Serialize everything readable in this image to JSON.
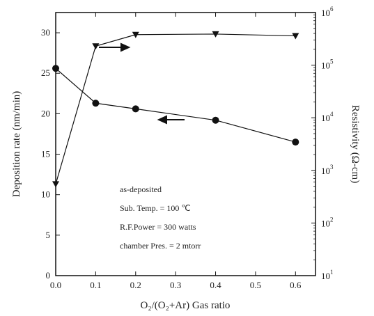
{
  "chart_data": {
    "type": "line",
    "title": "",
    "xlabel": "O₂/(O₂+Ar) Gas ratio",
    "ylabel_left": "Deposition rate (nm/min)",
    "ylabel_right": "Resistivity (Ω-cm)",
    "xlim": [
      0.0,
      0.65
    ],
    "ylim_left": [
      0,
      32.5
    ],
    "ylim_right": [
      10,
      1000000
    ],
    "right_scale": "log",
    "x_ticks": [
      "0.0",
      "0.1",
      "0.2",
      "0.3",
      "0.4",
      "0.5",
      "0.6"
    ],
    "y_left_ticks": [
      "0",
      "5",
      "10",
      "15",
      "20",
      "25",
      "30"
    ],
    "y_right_ticks": [
      {
        "base": "10",
        "exp": "1"
      },
      {
        "base": "10",
        "exp": "2"
      },
      {
        "base": "10",
        "exp": "3"
      },
      {
        "base": "10",
        "exp": "4"
      },
      {
        "base": "10",
        "exp": "5"
      },
      {
        "base": "10",
        "exp": "6"
      }
    ],
    "series": [
      {
        "axis": "left",
        "marker": "circle",
        "x": [
          0.0,
          0.1,
          0.2,
          0.4,
          0.6
        ],
        "values": [
          25.6,
          21.3,
          20.6,
          19.2,
          16.5
        ]
      },
      {
        "axis": "right",
        "marker": "triangle-down",
        "x": [
          0.0,
          0.1,
          0.2,
          0.4,
          0.6
        ],
        "values": [
          550,
          230000,
          380000,
          390000,
          360000
        ]
      }
    ],
    "annotations": [
      "as-deposited",
      "Sub. Temp. = 100 ℃",
      "R.F.Power = 300 watts",
      "chamber Pres. = 2 mtorr"
    ],
    "grid": false,
    "color": "#111111"
  }
}
